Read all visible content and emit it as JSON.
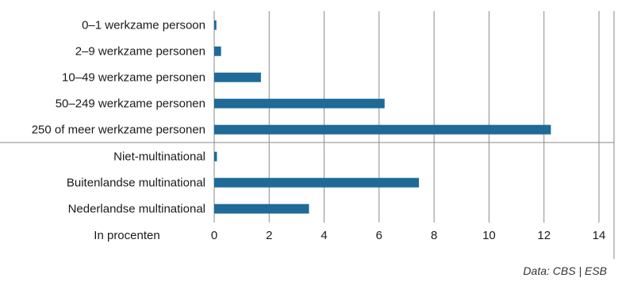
{
  "chart_data": {
    "type": "bar",
    "orientation": "horizontal",
    "categories": [
      "0–1 werkzame persoon",
      "2–9 werkzame personen",
      "10–49 werkzame personen",
      "50–249 werkzame personen",
      "250 of meer werkzame personen",
      "Niet-multinational",
      "Buitenlandse multinational",
      "Nederlandse multinational"
    ],
    "values": [
      0.08,
      0.25,
      1.7,
      6.2,
      12.25,
      0.1,
      7.45,
      3.45
    ],
    "group_break_after_index": 4,
    "xlabel": "In procenten",
    "xlim": [
      0,
      14
    ],
    "xticks": [
      0,
      2,
      4,
      6,
      8,
      10,
      12,
      14
    ],
    "grid": true,
    "bar_color": "#1f6a97"
  },
  "source": "Data: CBS | ESB"
}
